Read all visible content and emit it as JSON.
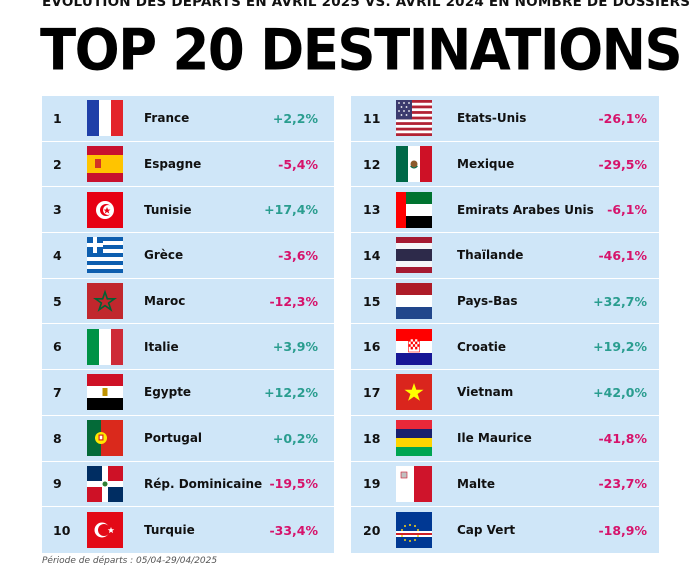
{
  "header": {
    "subtitle": "ÉVOLUTION DES DÉPARTS EN AVRIL 2025 VS. AVRIL 2024 EN NOMBRE DE DOSSIERS",
    "title": "TOP 20 DESTINATIONS"
  },
  "footer": {
    "note": "Période de départs : 05/04-29/04/2025"
  },
  "colors": {
    "positive": "#2a9d8f",
    "negative": "#d6136b",
    "panel": "#cfe6f8"
  },
  "chart_data": {
    "type": "table",
    "title": "TOP 20 DESTINATIONS",
    "subtitle": "ÉVOLUTION DES DÉPARTS EN AVRIL 2025 VS. AVRIL 2024 EN NOMBRE DE DOSSIERS",
    "rows": [
      {
        "rank": "1",
        "country": "France",
        "change": "+2,2%",
        "value": 2.2,
        "flag": "france-flag-icon"
      },
      {
        "rank": "2",
        "country": "Espagne",
        "change": "-5,4%",
        "value": -5.4,
        "flag": "spain-flag-icon"
      },
      {
        "rank": "3",
        "country": "Tunisie",
        "change": "+17,4%",
        "value": 17.4,
        "flag": "tunisia-flag-icon"
      },
      {
        "rank": "4",
        "country": "Grèce",
        "change": "-3,6%",
        "value": -3.6,
        "flag": "greece-flag-icon"
      },
      {
        "rank": "5",
        "country": "Maroc",
        "change": "-12,3%",
        "value": -12.3,
        "flag": "morocco-flag-icon"
      },
      {
        "rank": "6",
        "country": "Italie",
        "change": "+3,9%",
        "value": 3.9,
        "flag": "italy-flag-icon"
      },
      {
        "rank": "7",
        "country": "Egypte",
        "change": "+12,2%",
        "value": 12.2,
        "flag": "egypt-flag-icon"
      },
      {
        "rank": "8",
        "country": "Portugal",
        "change": "+0,2%",
        "value": 0.2,
        "flag": "portugal-flag-icon"
      },
      {
        "rank": "9",
        "country": "Rép. Dominicaine",
        "change": "-19,5%",
        "value": -19.5,
        "flag": "dominican-republic-flag-icon"
      },
      {
        "rank": "10",
        "country": "Turquie",
        "change": "-33,4%",
        "value": -33.4,
        "flag": "turkey-flag-icon"
      },
      {
        "rank": "11",
        "country": "Etats-Unis",
        "change": "-26,1%",
        "value": -26.1,
        "flag": "usa-flag-icon"
      },
      {
        "rank": "12",
        "country": "Mexique",
        "change": "-29,5%",
        "value": -29.5,
        "flag": "mexico-flag-icon"
      },
      {
        "rank": "13",
        "country": "Emirats Arabes Unis",
        "change": "-6,1%",
        "value": -6.1,
        "flag": "uae-flag-icon"
      },
      {
        "rank": "14",
        "country": "Thaïlande",
        "change": "-46,1%",
        "value": -46.1,
        "flag": "thailand-flag-icon"
      },
      {
        "rank": "15",
        "country": "Pays-Bas",
        "change": "+32,7%",
        "value": 32.7,
        "flag": "netherlands-flag-icon"
      },
      {
        "rank": "16",
        "country": "Croatie",
        "change": "+19,2%",
        "value": 19.2,
        "flag": "croatia-flag-icon"
      },
      {
        "rank": "17",
        "country": "Vietnam",
        "change": "+42,0%",
        "value": 42.0,
        "flag": "vietnam-flag-icon"
      },
      {
        "rank": "18",
        "country": "Ile Maurice",
        "change": "-41,8%",
        "value": -41.8,
        "flag": "mauritius-flag-icon"
      },
      {
        "rank": "19",
        "country": "Malte",
        "change": "-23,7%",
        "value": -23.7,
        "flag": "malta-flag-icon"
      },
      {
        "rank": "20",
        "country": "Cap Vert",
        "change": "-18,9%",
        "value": -18.9,
        "flag": "cape-verde-flag-icon"
      }
    ]
  }
}
